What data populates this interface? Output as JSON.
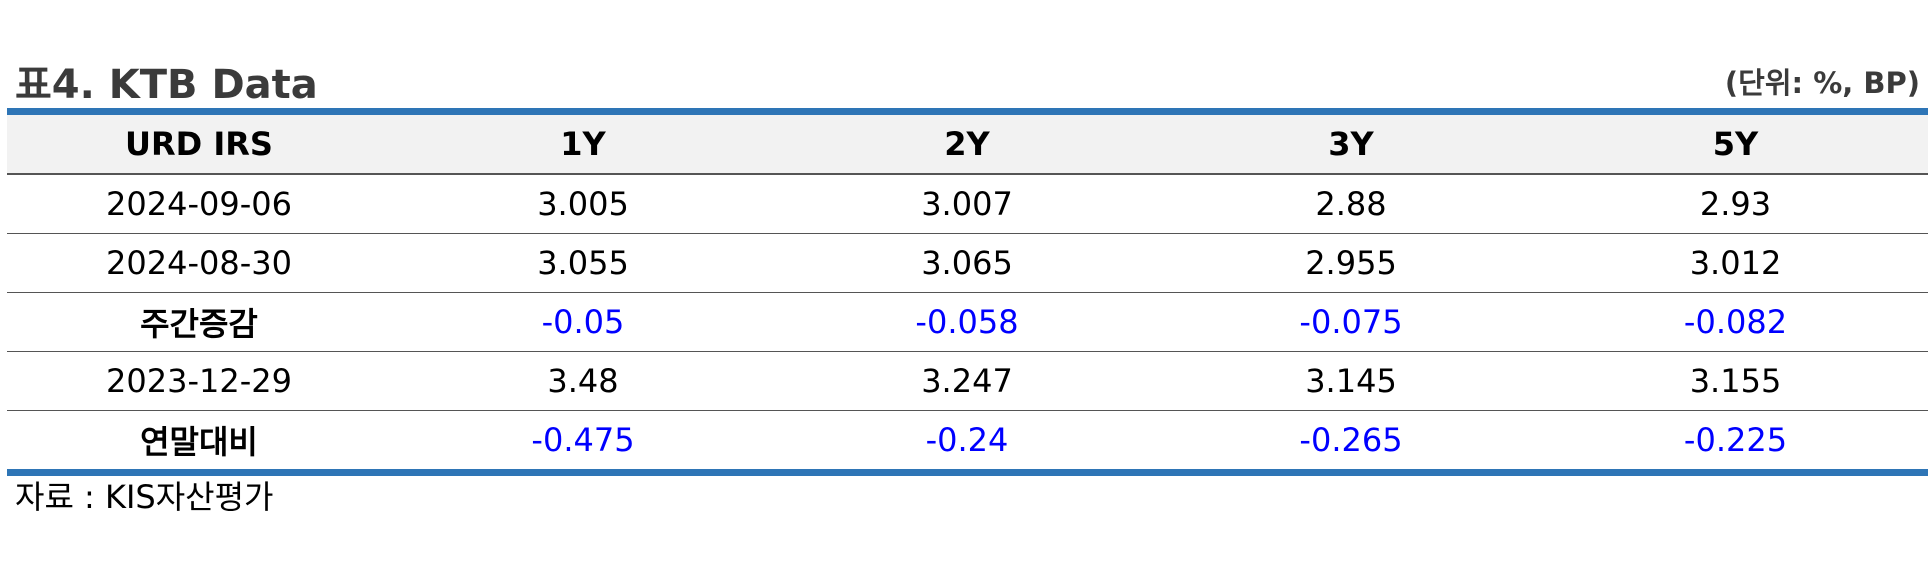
{
  "header": {
    "title": "표4. KTB Data",
    "unit": "(단위: %, BP)"
  },
  "table": {
    "columns": [
      "URD IRS",
      "1Y",
      "2Y",
      "3Y",
      "5Y"
    ],
    "rows": [
      {
        "label": "2024-09-06",
        "values": [
          "3.005",
          "3.007",
          "2.88",
          "2.93"
        ]
      },
      {
        "label": "2024-08-30",
        "values": [
          "3.055",
          "3.065",
          "2.955",
          "3.012"
        ]
      },
      {
        "label": "주간증감",
        "values": [
          "-0.05",
          "-0.058",
          "-0.075",
          "-0.082"
        ]
      },
      {
        "label": "2023-12-29",
        "values": [
          "3.48",
          "3.247",
          "3.145",
          "3.155"
        ]
      },
      {
        "label": "연말대비",
        "values": [
          "-0.475",
          "-0.24",
          "-0.265",
          "-0.225"
        ]
      }
    ]
  },
  "colors": {
    "rule": "#2e75b6",
    "negative_value": "#0000ff",
    "header_background": "#f2f2f2",
    "title_text": "#3b3b3b"
  },
  "footer": {
    "source": "자료 : KIS자산평가"
  }
}
